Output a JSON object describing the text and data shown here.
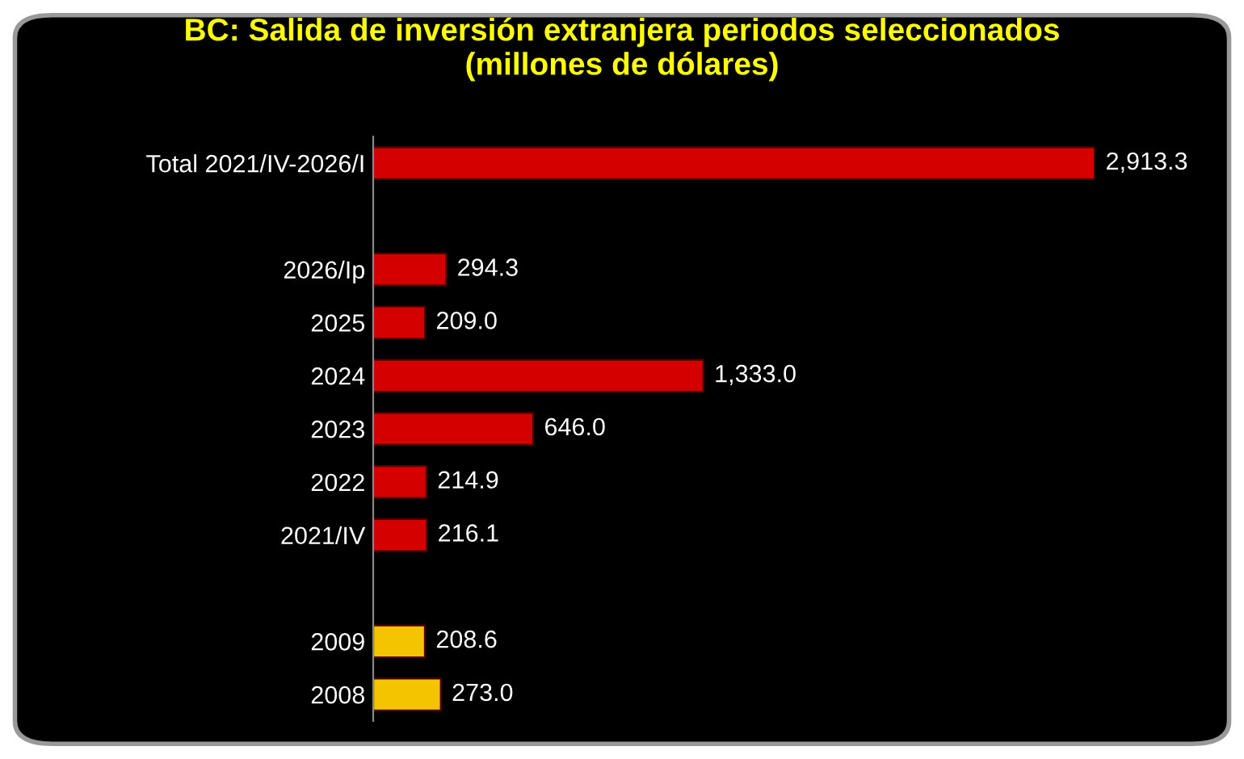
{
  "chart_data": {
    "type": "bar",
    "orientation": "horizontal",
    "title": "BC: Salida de inversión extranjera periodos seleccionados\n(millones de dólares)",
    "categories": [
      "Total 2021/IV-2026/I",
      null,
      "2026/Ip",
      "2025",
      "2024",
      "2023",
      "2022",
      "2021/IV",
      null,
      "2009",
      "2008"
    ],
    "values": [
      2913.3,
      null,
      294.3,
      209.0,
      1333.0,
      646.0,
      214.9,
      216.1,
      null,
      208.6,
      273.0
    ],
    "colors": [
      "#d40000",
      null,
      "#d40000",
      "#d40000",
      "#d40000",
      "#d40000",
      "#d40000",
      "#d40000",
      null,
      "#f5c400",
      "#f5c400"
    ],
    "value_labels": [
      "2,913.3",
      null,
      "294.3",
      "209.0",
      "1,333.0",
      "646.0",
      "214.9",
      "216.1",
      null,
      "208.6",
      "273.0"
    ]
  }
}
